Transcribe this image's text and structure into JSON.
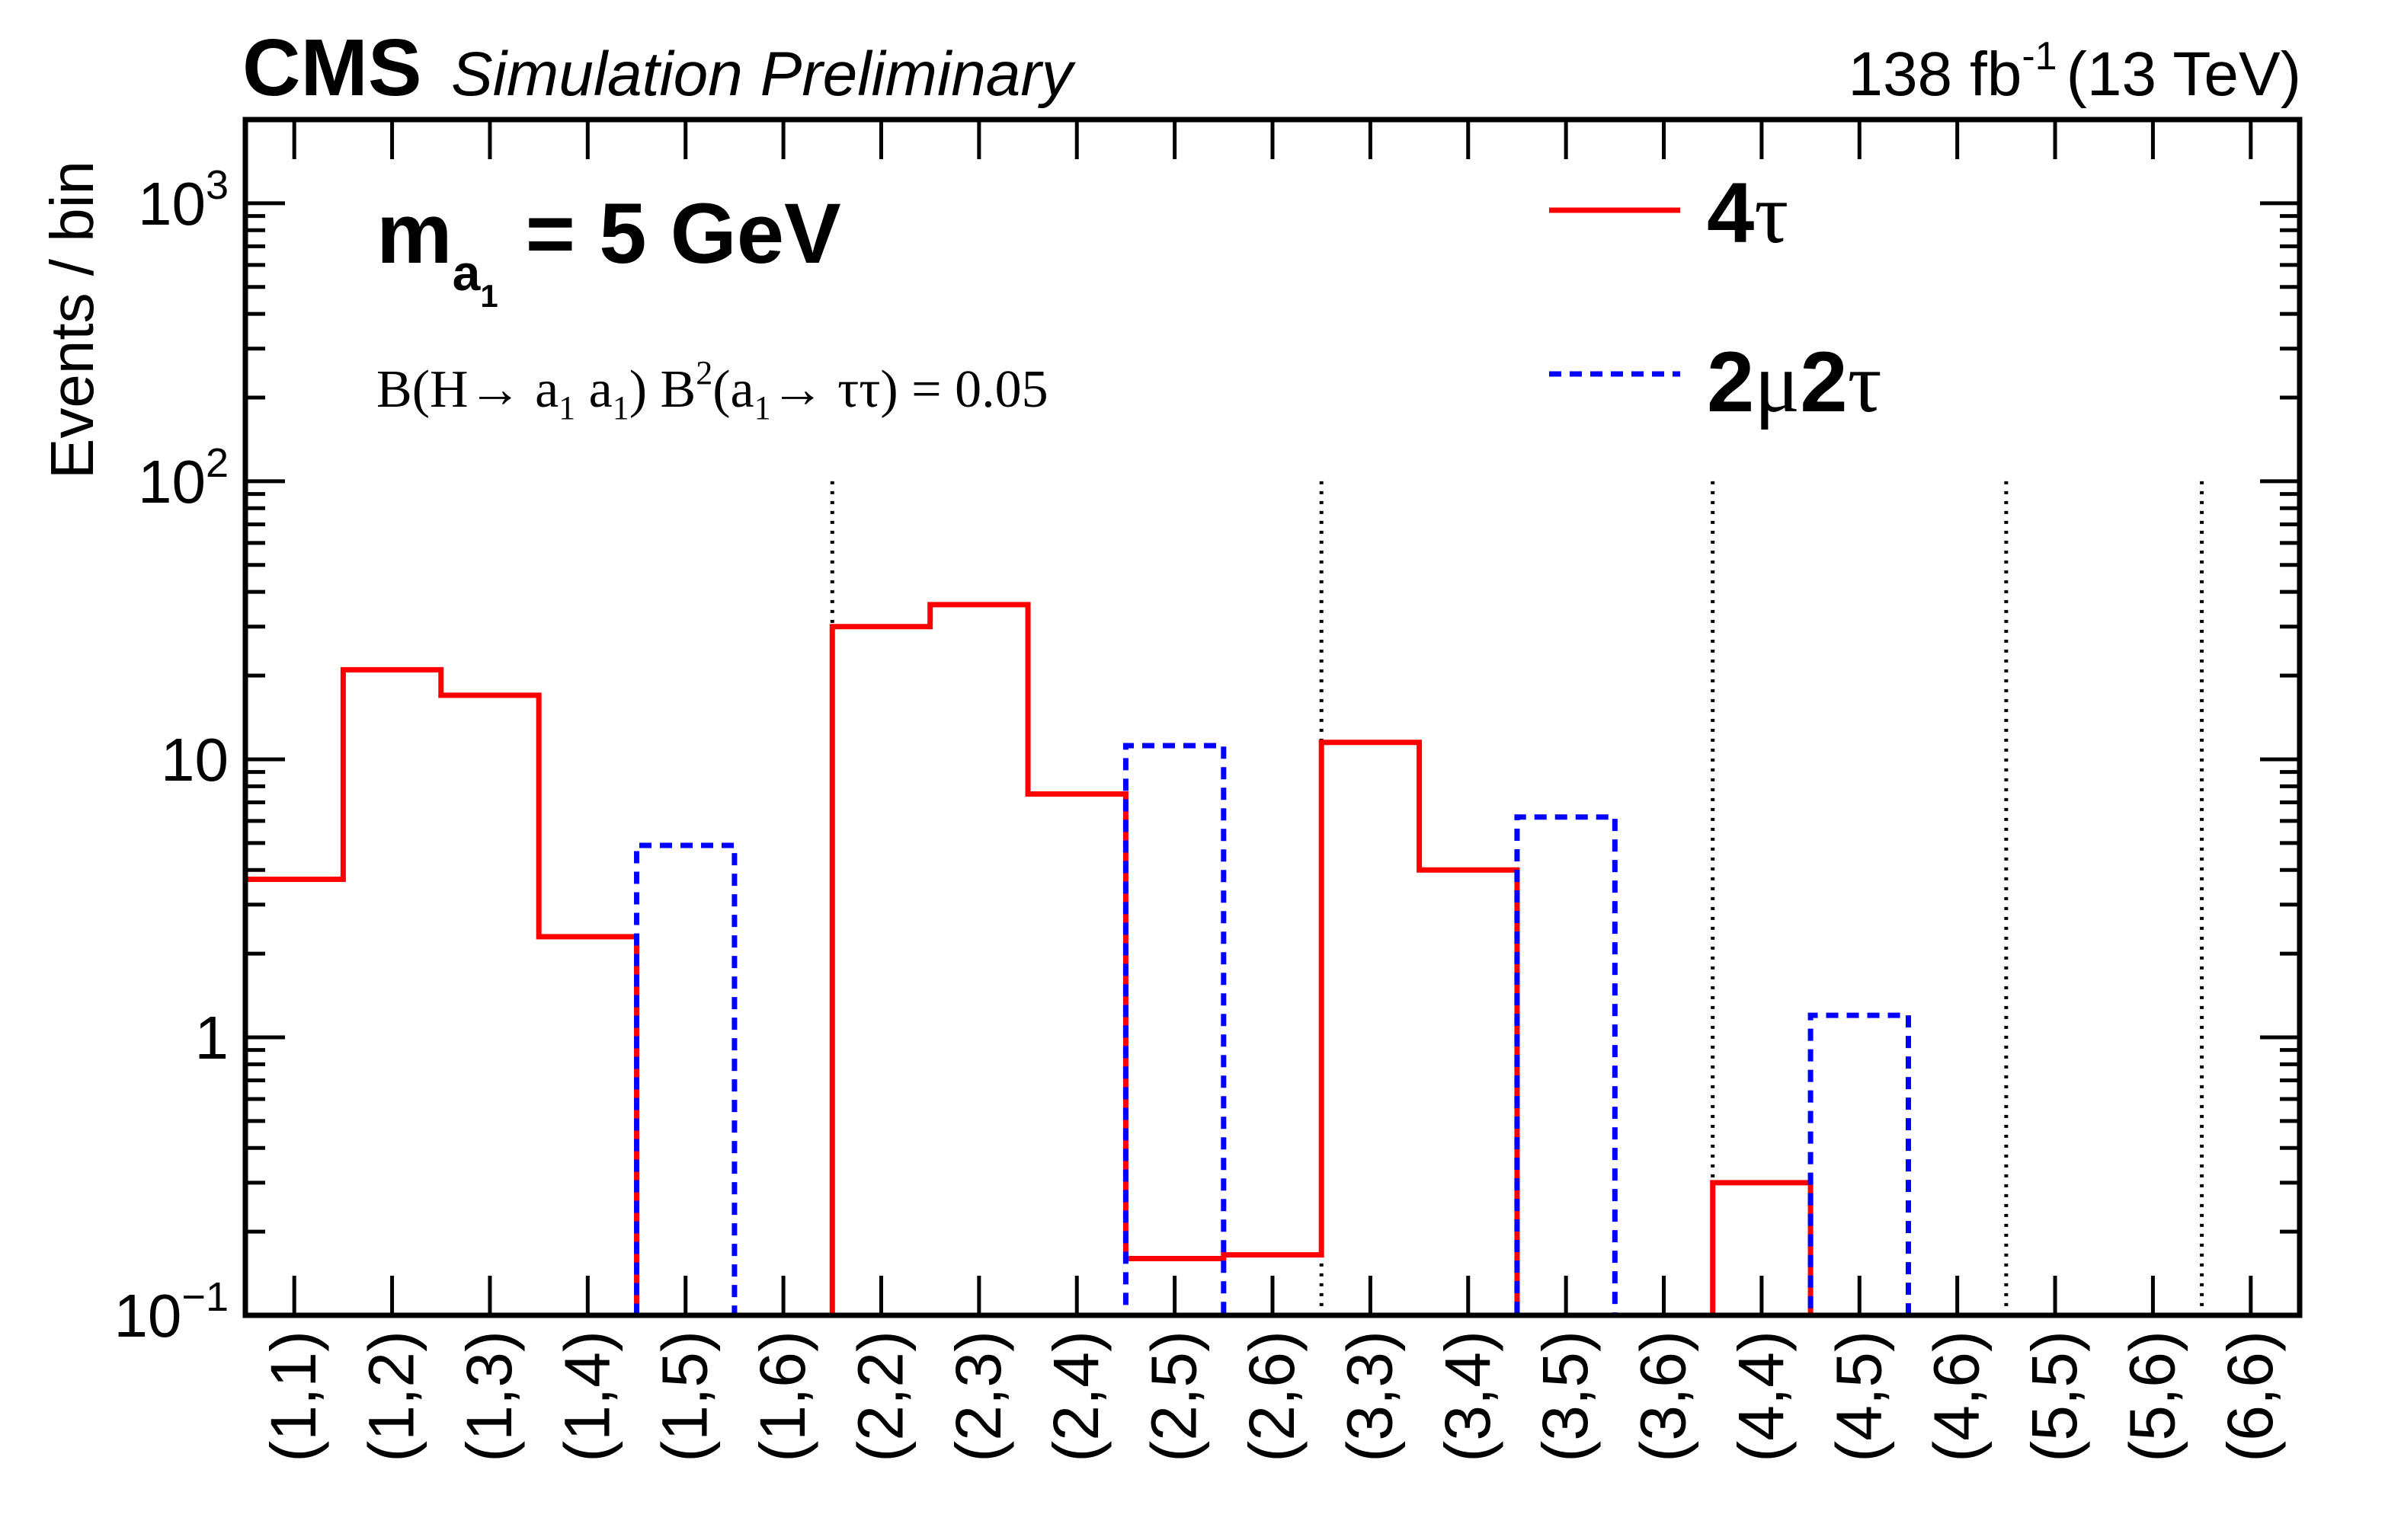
{
  "header": {
    "cms": "CMS",
    "subtitle": "Simulation Preliminary",
    "lumi_value": "138 fb",
    "lumi_exp": "-1",
    "lumi_energy": "(13 TeV)"
  },
  "annotation": {
    "mass_m": "m",
    "mass_a": "a",
    "mass_sub": "1",
    "mass_rest": "= 5 GeV",
    "br_part1": "B(H",
    "br_arrow1": "→",
    "br_part2": " a",
    "br_sub1": "1",
    "br_part3": " a",
    "br_sub2": "1",
    "br_part4": ") B",
    "br_sup": "2",
    "br_part5": "(a",
    "br_sub3": "1",
    "br_arrow2": "→",
    "br_part6": " ττ) = 0.05"
  },
  "colors": {
    "series_4tau": "#ff0000",
    "series_2mu2tau": "#0000ff",
    "axis": "#000000",
    "separator": "#000000"
  },
  "chart_data": {
    "type": "histogram-step",
    "ylabel": "Events / bin",
    "xlabel": "",
    "y_scale": "log",
    "ylim": [
      0.1,
      2000
    ],
    "y_ticks": [
      {
        "value": 0.1,
        "base": "10",
        "exp": "−1"
      },
      {
        "value": 1,
        "base": "1",
        "exp": ""
      },
      {
        "value": 10,
        "base": "10",
        "exp": ""
      },
      {
        "value": 100,
        "base": "10",
        "exp": "2"
      },
      {
        "value": 1000,
        "base": "10",
        "exp": "3"
      }
    ],
    "categories": [
      "(1,1)",
      "(1,2)",
      "(1,3)",
      "(1,4)",
      "(1,5)",
      "(1,6)",
      "(2,2)",
      "(2,3)",
      "(2,4)",
      "(2,5)",
      "(2,6)",
      "(3,3)",
      "(3,4)",
      "(3,5)",
      "(3,6)",
      "(4,4)",
      "(4,5)",
      "(4,6)",
      "(5,5)",
      "(5,6)",
      "(6,6)"
    ],
    "group_separators_before": [
      6,
      11,
      15,
      18,
      20
    ],
    "series": [
      {
        "name": "4τ",
        "style": "solid",
        "values": [
          3.7,
          21,
          17,
          2.3,
          0,
          0,
          30,
          36,
          7.5,
          0.16,
          0.165,
          11.5,
          4.0,
          0,
          0,
          0.3,
          0,
          0,
          0,
          0,
          0
        ]
      },
      {
        "name": "2μ2τ",
        "style": "dashed",
        "values": [
          0,
          0,
          0,
          0,
          4.9,
          0,
          0,
          0,
          0,
          11.2,
          0,
          0,
          0,
          6.2,
          0,
          0,
          1.2,
          0,
          0,
          0,
          0
        ]
      }
    ],
    "legend": {
      "placement": "top-right",
      "entries": [
        {
          "label_main": "4",
          "label_greek": "τ"
        },
        {
          "label_main": "2",
          "label_greek": "μ",
          "label_main2": "2",
          "label_greek2": "τ"
        }
      ]
    },
    "grid": false
  }
}
